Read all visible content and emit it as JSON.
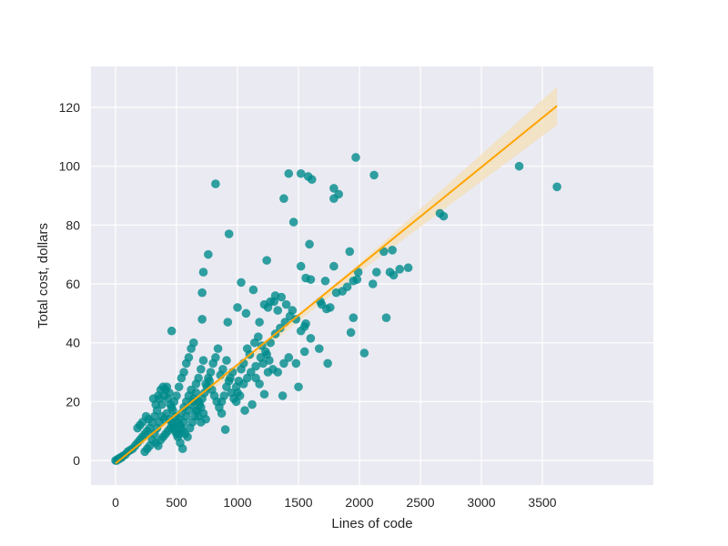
{
  "chart_data": {
    "type": "scatter",
    "title": "",
    "xlabel": "Lines of code",
    "ylabel": "Total cost, dollars",
    "xlim": [
      -170,
      3800
    ],
    "ylim": [
      -8,
      134
    ],
    "xticks": [
      0,
      500,
      1000,
      1500,
      2000,
      2500,
      3000,
      3500
    ],
    "yticks": [
      0,
      20,
      40,
      60,
      80,
      100,
      120
    ],
    "grid": true,
    "legend": null,
    "colors": {
      "background": "#eaeaf2",
      "grid": "#ffffff",
      "points": "#008b8b",
      "regression_line": "#ffa500",
      "confidence_band": "#f5deb3"
    },
    "regression": {
      "x_start": 0,
      "y_start": -1,
      "x_end": 3620,
      "y_end": 120.5,
      "ci_at_end": [
        114,
        127
      ]
    },
    "series": [
      {
        "name": "points",
        "points": [
          [
            820,
            94
          ],
          [
            930,
            77
          ],
          [
            1420,
            97.5
          ],
          [
            1520,
            97.5
          ],
          [
            1580,
            96.5
          ],
          [
            1610,
            95.5
          ],
          [
            1970,
            103
          ],
          [
            2120,
            97
          ],
          [
            1380,
            89
          ],
          [
            1790,
            92.5
          ],
          [
            1830,
            90.5
          ],
          [
            1790,
            89
          ],
          [
            3310,
            100
          ],
          [
            3620,
            93
          ],
          [
            2660,
            84
          ],
          [
            2690,
            83
          ],
          [
            1460,
            81
          ],
          [
            1590,
            73.5
          ],
          [
            760,
            70
          ],
          [
            720,
            64
          ],
          [
            710,
            57
          ],
          [
            710,
            48
          ],
          [
            460,
            44
          ],
          [
            920,
            47
          ],
          [
            1030,
            60.5
          ],
          [
            1130,
            58
          ],
          [
            1240,
            68
          ],
          [
            1310,
            56
          ],
          [
            1360,
            55.5
          ],
          [
            1520,
            66
          ],
          [
            1560,
            62
          ],
          [
            1600,
            61.5
          ],
          [
            1720,
            61
          ],
          [
            1790,
            66
          ],
          [
            1920,
            71
          ],
          [
            1950,
            61
          ],
          [
            1990,
            64
          ],
          [
            2140,
            64
          ],
          [
            2200,
            71
          ],
          [
            2270,
            71.5
          ],
          [
            2250,
            64
          ],
          [
            2280,
            63
          ],
          [
            2330,
            65
          ],
          [
            2400,
            65.5
          ],
          [
            2110,
            60
          ],
          [
            1980,
            61.5
          ],
          [
            1900,
            59
          ],
          [
            1860,
            57.5
          ],
          [
            1810,
            57
          ],
          [
            1760,
            52
          ],
          [
            1730,
            51.5
          ],
          [
            1690,
            53
          ],
          [
            1680,
            54
          ],
          [
            1560,
            46.5
          ],
          [
            1550,
            45.5
          ],
          [
            1600,
            41.5
          ],
          [
            1670,
            38
          ],
          [
            1740,
            33
          ],
          [
            1950,
            48.5
          ],
          [
            1930,
            43.5
          ],
          [
            2040,
            36.5
          ],
          [
            2220,
            48.5
          ],
          [
            1500,
            25
          ],
          [
            1370,
            22
          ],
          [
            1220,
            22.5
          ],
          [
            1120,
            19
          ],
          [
            1060,
            17
          ],
          [
            1000,
            23
          ],
          [
            900,
            10.5
          ],
          [
            870,
            16
          ],
          [
            1000,
            52
          ],
          [
            1070,
            50
          ],
          [
            1180,
            47
          ],
          [
            1220,
            53
          ],
          [
            1250,
            52
          ],
          [
            1270,
            54
          ],
          [
            1300,
            54
          ],
          [
            1330,
            51
          ],
          [
            1400,
            53
          ],
          [
            1450,
            51
          ],
          [
            1480,
            48
          ],
          [
            1520,
            44
          ],
          [
            1550,
            37
          ],
          [
            1480,
            33
          ],
          [
            1420,
            35
          ],
          [
            1380,
            33
          ],
          [
            1330,
            30
          ],
          [
            1290,
            31
          ],
          [
            1260,
            34
          ],
          [
            1240,
            36
          ],
          [
            1200,
            39
          ],
          [
            1170,
            42
          ],
          [
            1140,
            40
          ],
          [
            1100,
            36
          ],
          [
            1080,
            38
          ],
          [
            1050,
            33
          ],
          [
            1030,
            31
          ],
          [
            1010,
            27
          ],
          [
            990,
            25
          ],
          [
            960,
            30
          ],
          [
            940,
            28
          ],
          [
            910,
            34
          ],
          [
            880,
            31
          ],
          [
            860,
            29
          ],
          [
            840,
            38
          ],
          [
            820,
            35
          ],
          [
            800,
            33
          ],
          [
            780,
            30
          ],
          [
            760,
            28
          ],
          [
            740,
            26
          ],
          [
            720,
            34
          ],
          [
            700,
            31
          ],
          [
            680,
            28
          ],
          [
            660,
            26
          ],
          [
            640,
            40
          ],
          [
            620,
            38
          ],
          [
            600,
            35
          ],
          [
            580,
            33
          ],
          [
            560,
            30
          ],
          [
            540,
            28
          ],
          [
            520,
            25
          ],
          [
            500,
            22
          ],
          [
            480,
            20
          ],
          [
            460,
            18
          ],
          [
            440,
            23
          ],
          [
            420,
            25
          ],
          [
            400,
            22
          ],
          [
            380,
            19
          ],
          [
            360,
            21
          ],
          [
            340,
            17
          ],
          [
            320,
            15
          ],
          [
            300,
            13
          ],
          [
            280,
            11
          ],
          [
            260,
            10
          ],
          [
            240,
            9
          ],
          [
            220,
            8
          ],
          [
            200,
            7
          ],
          [
            180,
            6
          ],
          [
            160,
            5
          ],
          [
            140,
            4
          ],
          [
            120,
            3.5
          ],
          [
            100,
            3
          ],
          [
            80,
            2
          ],
          [
            60,
            1.5
          ],
          [
            40,
            1
          ],
          [
            20,
            0.5
          ],
          [
            0,
            0
          ],
          [
            10,
            0
          ],
          [
            30,
            0.5
          ],
          [
            50,
            1
          ],
          [
            220,
            13
          ],
          [
            200,
            12
          ],
          [
            180,
            11
          ],
          [
            250,
            15
          ],
          [
            270,
            14
          ],
          [
            310,
            21
          ],
          [
            330,
            19
          ],
          [
            350,
            22
          ],
          [
            370,
            24
          ],
          [
            390,
            25
          ],
          [
            410,
            24
          ],
          [
            430,
            21
          ],
          [
            450,
            19
          ],
          [
            470,
            17
          ],
          [
            490,
            15
          ],
          [
            510,
            13
          ],
          [
            530,
            12
          ],
          [
            550,
            10
          ],
          [
            570,
            9
          ],
          [
            590,
            8
          ],
          [
            610,
            11
          ],
          [
            630,
            13
          ],
          [
            650,
            15
          ],
          [
            670,
            17
          ],
          [
            690,
            19
          ],
          [
            710,
            21
          ],
          [
            730,
            23
          ],
          [
            750,
            25
          ],
          [
            770,
            27
          ],
          [
            790,
            24
          ],
          [
            810,
            22
          ],
          [
            830,
            20
          ],
          [
            850,
            18
          ],
          [
            870,
            20
          ],
          [
            890,
            22
          ],
          [
            910,
            25
          ],
          [
            930,
            27
          ],
          [
            950,
            23
          ],
          [
            970,
            21
          ],
          [
            990,
            20
          ],
          [
            1020,
            22
          ],
          [
            1050,
            26
          ],
          [
            1080,
            28
          ],
          [
            1110,
            30
          ],
          [
            1150,
            32
          ],
          [
            1190,
            35
          ],
          [
            1230,
            37
          ],
          [
            1270,
            40
          ],
          [
            1310,
            43
          ],
          [
            1350,
            45
          ],
          [
            1390,
            47
          ],
          [
            1430,
            49
          ],
          [
            1150,
            28
          ],
          [
            1180,
            26
          ],
          [
            1210,
            33
          ],
          [
            1250,
            30
          ],
          [
            330,
            6
          ],
          [
            350,
            5
          ],
          [
            370,
            7
          ],
          [
            390,
            8
          ],
          [
            410,
            9
          ],
          [
            430,
            10
          ],
          [
            450,
            11
          ],
          [
            470,
            12
          ],
          [
            490,
            10
          ],
          [
            510,
            8
          ],
          [
            530,
            6
          ],
          [
            550,
            4
          ],
          [
            520,
            9
          ],
          [
            540,
            11
          ],
          [
            560,
            13
          ],
          [
            580,
            15
          ],
          [
            600,
            17
          ],
          [
            620,
            19
          ],
          [
            640,
            21
          ],
          [
            660,
            23
          ],
          [
            680,
            20
          ],
          [
            700,
            18
          ],
          [
            720,
            16
          ],
          [
            740,
            14
          ],
          [
            300,
            7
          ],
          [
            280,
            5
          ],
          [
            260,
            4
          ],
          [
            240,
            3
          ],
          [
            320,
            9
          ],
          [
            340,
            11
          ],
          [
            360,
            13
          ],
          [
            380,
            15
          ],
          [
            400,
            14
          ],
          [
            420,
            16
          ],
          [
            440,
            14
          ],
          [
            460,
            13
          ],
          [
            480,
            11
          ],
          [
            500,
            9
          ],
          [
            520,
            14
          ],
          [
            540,
            16
          ],
          [
            560,
            18
          ],
          [
            580,
            20
          ],
          [
            600,
            22
          ],
          [
            620,
            24
          ],
          [
            640,
            20
          ],
          [
            660,
            17
          ],
          [
            680,
            15
          ],
          [
            700,
            13
          ]
        ]
      }
    ]
  }
}
